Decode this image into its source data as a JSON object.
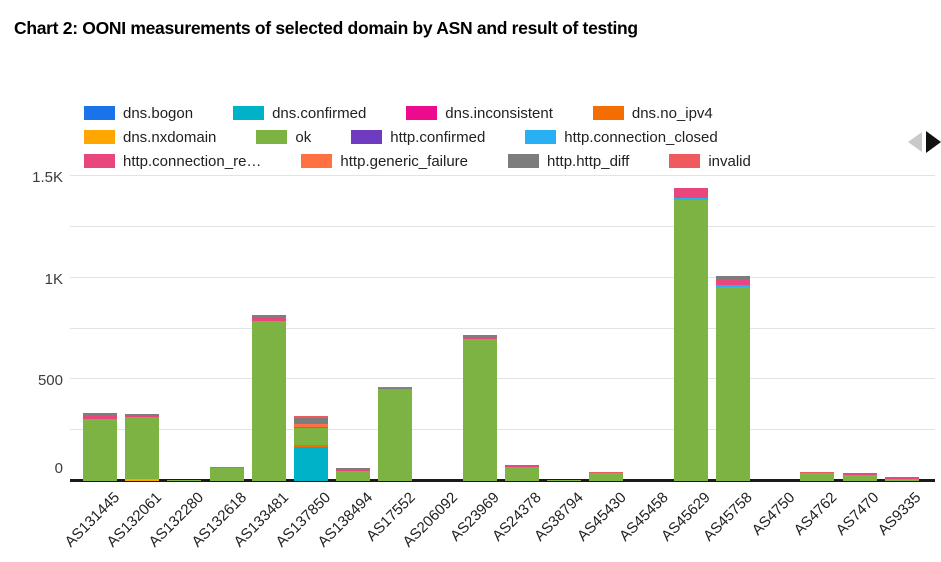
{
  "title": "Chart 2: OONI measurements of selected domain by ASN and result of testing",
  "legend": {
    "rows": [
      [
        {
          "label": "dns.bogon",
          "color": "#1a73e8"
        },
        {
          "label": "dns.confirmed",
          "color": "#00b2c8"
        },
        {
          "label": "dns.inconsistent",
          "color": "#ee0a8e"
        },
        {
          "label": "dns.no_ipv4",
          "color": "#f36d00"
        }
      ],
      [
        {
          "label": "dns.nxdomain",
          "color": "#ffa600"
        },
        {
          "label": "ok",
          "color": "#7cb342"
        },
        {
          "label": "http.confirmed",
          "color": "#6f3cc1"
        },
        {
          "label": "http.connection_closed",
          "color": "#29b0f4"
        }
      ],
      [
        {
          "label": "http.connection_re…",
          "color": "#e8467c"
        },
        {
          "label": "http.generic_failure",
          "color": "#ff7043"
        },
        {
          "label": "http.http_diff",
          "color": "#7d7d7d"
        },
        {
          "label": "invalid",
          "color": "#ef5a5e"
        }
      ]
    ],
    "pager": {
      "prev_icon": "left-triangle",
      "next_icon": "right-triangle",
      "prev_color": "#c9c9c9",
      "next_color": "#111111"
    }
  },
  "chart_data": {
    "type": "bar",
    "stacked": true,
    "title": "Chart 2: OONI measurements of selected domain by ASN and result of testing",
    "xlabel": "",
    "ylabel": "",
    "legend_position": "top",
    "grid": true,
    "ylim": [
      0,
      1550
    ],
    "gridline_values": [
      250,
      500,
      750,
      1000,
      1250,
      1500
    ],
    "yticks": [
      {
        "label": "0",
        "value": 0
      },
      {
        "label": "500",
        "value": 500
      },
      {
        "label": "1K",
        "value": 1000
      },
      {
        "label": "1.5K",
        "value": 1500
      }
    ],
    "categories": [
      "AS131445",
      "AS132061",
      "AS132280",
      "AS132618",
      "AS133481",
      "AS137850",
      "AS138494",
      "AS17552",
      "AS206092",
      "AS23969",
      "AS24378",
      "AS38794",
      "AS45430",
      "AS45458",
      "AS45629",
      "AS45758",
      "AS4750",
      "AS4762",
      "AS7470",
      "AS9335"
    ],
    "series": [
      {
        "name": "dns.bogon",
        "color": "#1a73e8",
        "values": [
          0,
          0,
          0,
          0,
          0,
          0,
          0,
          0,
          0,
          0,
          0,
          0,
          0,
          0,
          0,
          0,
          0,
          0,
          0,
          0
        ]
      },
      {
        "name": "dns.confirmed",
        "color": "#00b2c8",
        "values": [
          0,
          0,
          0,
          0,
          0,
          165,
          0,
          0,
          0,
          0,
          0,
          0,
          0,
          0,
          0,
          0,
          0,
          0,
          0,
          0
        ]
      },
      {
        "name": "dns.inconsistent",
        "color": "#ee0a8e",
        "values": [
          0,
          0,
          0,
          0,
          0,
          0,
          0,
          0,
          0,
          0,
          0,
          0,
          0,
          0,
          0,
          0,
          0,
          0,
          0,
          0
        ]
      },
      {
        "name": "dns.no_ipv4",
        "color": "#f36d00",
        "values": [
          0,
          0,
          0,
          0,
          0,
          10,
          0,
          0,
          0,
          0,
          0,
          0,
          0,
          0,
          0,
          0,
          0,
          0,
          0,
          0
        ]
      },
      {
        "name": "dns.nxdomain",
        "color": "#ffa600",
        "values": [
          0,
          8,
          0,
          0,
          0,
          0,
          0,
          0,
          0,
          0,
          0,
          0,
          0,
          0,
          0,
          0,
          0,
          0,
          0,
          0
        ]
      },
      {
        "name": "ok",
        "color": "#7cb342",
        "values": [
          305,
          305,
          3,
          62,
          785,
          85,
          50,
          455,
          0,
          700,
          68,
          2,
          38,
          0,
          1385,
          955,
          0,
          38,
          30,
          10
        ]
      },
      {
        "name": "http.confirmed",
        "color": "#6f3cc1",
        "values": [
          0,
          0,
          0,
          0,
          0,
          0,
          0,
          0,
          0,
          0,
          0,
          0,
          0,
          0,
          0,
          0,
          0,
          0,
          0,
          0
        ]
      },
      {
        "name": "http.connection_closed",
        "color": "#29b0f4",
        "values": [
          0,
          0,
          0,
          0,
          0,
          0,
          0,
          0,
          0,
          0,
          0,
          0,
          0,
          0,
          8,
          8,
          0,
          0,
          0,
          0
        ]
      },
      {
        "name": "http.connection_re…",
        "color": "#e8467c",
        "values": [
          20,
          5,
          0,
          0,
          20,
          8,
          5,
          0,
          0,
          10,
          6,
          0,
          0,
          0,
          50,
          30,
          0,
          0,
          5,
          8
        ]
      },
      {
        "name": "http.generic_failure",
        "color": "#ff7043",
        "values": [
          0,
          0,
          0,
          0,
          0,
          12,
          0,
          0,
          0,
          0,
          0,
          0,
          0,
          0,
          0,
          0,
          0,
          0,
          0,
          0
        ]
      },
      {
        "name": "http.http_diff",
        "color": "#7d7d7d",
        "values": [
          10,
          10,
          0,
          0,
          12,
          28,
          10,
          5,
          0,
          10,
          6,
          0,
          0,
          0,
          0,
          15,
          0,
          0,
          5,
          0
        ]
      },
      {
        "name": "invalid",
        "color": "#ef5a5e",
        "values": [
          0,
          0,
          0,
          5,
          0,
          10,
          0,
          5,
          0,
          0,
          0,
          0,
          5,
          0,
          0,
          0,
          0,
          5,
          0,
          0
        ]
      }
    ]
  }
}
